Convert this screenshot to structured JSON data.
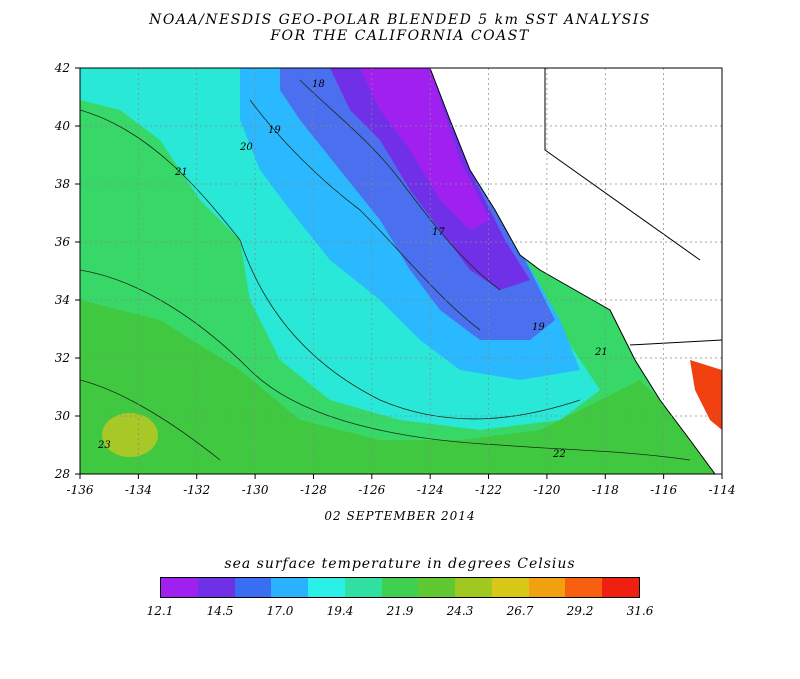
{
  "title_line1": "NOAA/NESDIS GEO-POLAR BLENDED 5 km SST ANALYSIS",
  "title_line2": "FOR THE CALIFORNIA COAST",
  "date": "02 SEPTEMBER 2014",
  "colorbar_title": "sea surface temperature in degrees Celsius",
  "colorbar_ticks": [
    "12.1",
    "14.5",
    "17.0",
    "19.4",
    "21.9",
    "24.3",
    "26.7",
    "29.2",
    "31.6"
  ],
  "colorbar_colors": [
    "#a020f0",
    "#7030e8",
    "#3a6ef2",
    "#2ab2ff",
    "#2af0e8",
    "#30e0a0",
    "#40d050",
    "#60c830",
    "#a0c820",
    "#d8c818",
    "#f0a010",
    "#f86010",
    "#f02010"
  ],
  "axes": {
    "x_ticks": [
      "-136",
      "-134",
      "-132",
      "-130",
      "-128",
      "-126",
      "-124",
      "-122",
      "-120",
      "-118",
      "-116",
      "-114"
    ],
    "y_ticks": [
      "42",
      "40",
      "38",
      "36",
      "34",
      "32",
      "30",
      "28"
    ]
  },
  "contour_labels": [
    "18",
    "19",
    "20",
    "21",
    "21",
    "22",
    "23",
    "17",
    "19"
  ]
}
